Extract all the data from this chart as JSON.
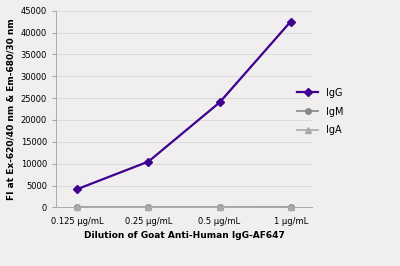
{
  "x_labels": [
    "0.125 μg/mL",
    "0.25 μg/mL",
    "0.5 μg/mL",
    "1 μg/mL"
  ],
  "x_values": [
    0,
    1,
    2,
    3
  ],
  "series": [
    {
      "name": "IgG",
      "values": [
        4200,
        10500,
        24000,
        42500
      ],
      "color": "#3d008f",
      "marker": "D",
      "markersize": 4,
      "linewidth": 1.6
    },
    {
      "name": "IgM",
      "values": [
        100,
        100,
        100,
        150
      ],
      "color": "#888888",
      "marker": "o",
      "markersize": 4,
      "linewidth": 1.2
    },
    {
      "name": "IgA",
      "values": [
        80,
        80,
        80,
        100
      ],
      "color": "#aaaaaa",
      "marker": "^",
      "markersize": 4,
      "linewidth": 1.2
    }
  ],
  "ylabel": "FI at Ex-620/40 nm & Em-680/30 nm",
  "xlabel": "Dilution of Goat Anti-Human IgG-AF647",
  "ylim": [
    0,
    45000
  ],
  "yticks": [
    0,
    5000,
    10000,
    15000,
    20000,
    25000,
    30000,
    35000,
    40000,
    45000
  ],
  "ytick_labels": [
    "0",
    "5000",
    "10000",
    "15000",
    "20000",
    "25000",
    "30000",
    "35000",
    "40000",
    "45000"
  ],
  "background_color": "#f0eeee",
  "plot_bg_color": "#f0eeee",
  "grid_color": "#d8d8d8",
  "axis_label_fontsize": 6.5,
  "tick_fontsize": 6,
  "legend_fontsize": 7
}
